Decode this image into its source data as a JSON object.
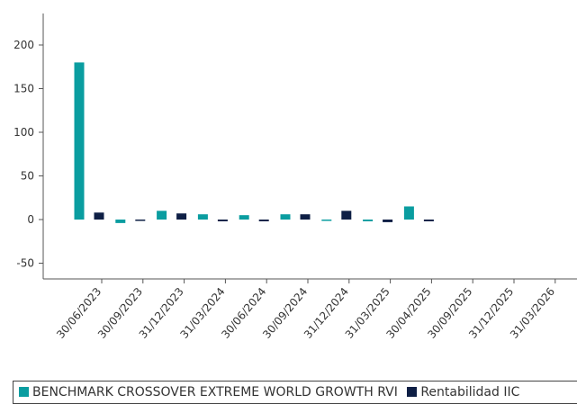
{
  "colors": {
    "benchmark": "#0a9da0",
    "fund": "#0e1f45",
    "axis": "#555555"
  },
  "chart_data": {
    "type": "bar",
    "title": "",
    "xlabel": "",
    "ylabel": "",
    "ylim": [
      -60,
      230
    ],
    "yticks": [
      -50,
      0,
      50,
      100,
      150,
      200
    ],
    "categories": [
      "30/06/2023",
      "30/09/2023",
      "31/12/2023",
      "31/03/2024",
      "30/06/2024",
      "30/09/2024",
      "31/12/2024",
      "31/03/2025",
      "30/04/2025",
      "30/09/2025",
      "31/12/2025",
      "31/03/2026"
    ],
    "grid": false,
    "legend_position": "bottom",
    "series": [
      {
        "name": "BENCHMARK CROSSOVER EXTREME WORLD GROWTH RVI",
        "color": "#0a9da0",
        "values": [
          180,
          -4,
          10,
          6,
          5,
          6,
          -1,
          -2,
          15,
          null,
          null,
          null
        ]
      },
      {
        "name": "Rentabilidad IIC",
        "color": "#0e1f45",
        "values": [
          8,
          -1,
          7,
          -2,
          -2,
          6,
          10,
          -3,
          -2,
          null,
          null,
          null
        ]
      }
    ]
  }
}
